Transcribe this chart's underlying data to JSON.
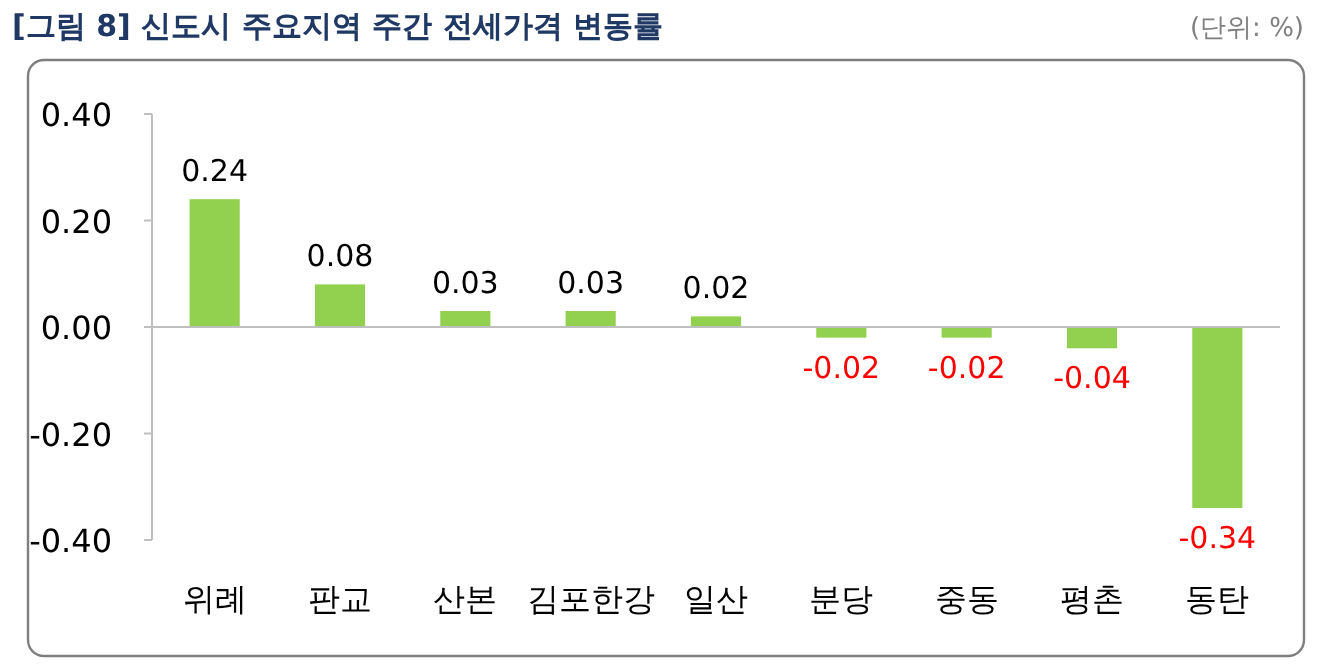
{
  "chart_data": {
    "type": "bar",
    "title": "[그림 8] 신도시 주요지역 주간 전세가격 변동률",
    "annotations": [
      "(단위: %)"
    ],
    "categories": [
      "위례",
      "판교",
      "산본",
      "김포한강",
      "일산",
      "분당",
      "중동",
      "평촌",
      "동탄"
    ],
    "values": [
      0.24,
      0.08,
      0.03,
      0.03,
      0.02,
      -0.02,
      -0.02,
      -0.04,
      -0.34
    ],
    "color": "#92d050",
    "ylim": [
      -0.4,
      0.4
    ],
    "yticks": [
      {
        "value": -0.4,
        "label": "-0.40"
      },
      {
        "value": -0.2,
        "label": "-0.20"
      },
      {
        "value": 0,
        "label": "0.00"
      },
      {
        "value": 0.2,
        "label": "0.20"
      },
      {
        "value": 0.4,
        "label": "0.40"
      }
    ],
    "data_labels": true
  }
}
